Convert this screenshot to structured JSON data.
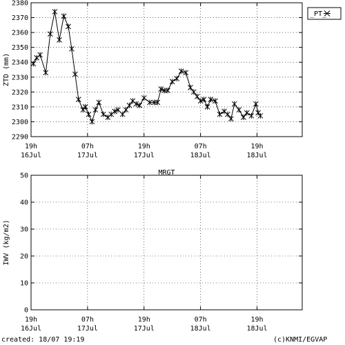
{
  "chart_data": [
    {
      "type": "line",
      "ylabel": "ZTD (mm)",
      "ylim": [
        2290,
        2380
      ],
      "yticks": [
        2290,
        2300,
        2310,
        2320,
        2330,
        2340,
        2350,
        2360,
        2370,
        2380
      ],
      "xlim": [
        0,
        48
      ],
      "xticks": [
        {
          "x": 0,
          "top": "19h",
          "bottom": "16Jul"
        },
        {
          "x": 10,
          "top": "07h",
          "bottom": "17Jul"
        },
        {
          "x": 20,
          "top": "19h",
          "bottom": "17Jul"
        },
        {
          "x": 30,
          "top": "07h",
          "bottom": "18Jul"
        },
        {
          "x": 40,
          "top": "19h",
          "bottom": "18Jul"
        }
      ],
      "legend": {
        "label": "_PT_",
        "position": "top-right outside"
      },
      "series": [
        {
          "name": "_PT_",
          "marker": "asterisk",
          "x": [
            0.4,
            1.0,
            1.6,
            2.6,
            3.4,
            4.2,
            5.0,
            5.8,
            6.6,
            7.2,
            7.8,
            8.4,
            9.2,
            9.6,
            10.2,
            10.8,
            11.4,
            12.0,
            12.8,
            13.6,
            14.2,
            14.8,
            15.4,
            16.2,
            16.8,
            17.4,
            18.0,
            18.6,
            19.2,
            20.0,
            21.0,
            21.8,
            22.4,
            23.0,
            23.6,
            24.2,
            25.0,
            25.8,
            26.6,
            27.4,
            28.2,
            28.8,
            29.4,
            30.0,
            30.6,
            31.2,
            31.8,
            32.6,
            33.4,
            34.2,
            34.8,
            35.4,
            36.0,
            36.8,
            37.6,
            38.2,
            39.0,
            39.8,
            40.2,
            40.6
          ],
          "y": [
            2339,
            2343,
            2345,
            2333,
            2359,
            2374,
            2355,
            2371,
            2364,
            2349,
            2332,
            2315,
            2308,
            2310,
            2305,
            2300,
            2308,
            2313,
            2305,
            2303,
            2305,
            2307,
            2308,
            2305,
            2308,
            2311,
            2314,
            2312,
            2311,
            2316,
            2313,
            2313,
            2313,
            2322,
            2321,
            2321,
            2327,
            2329,
            2334,
            2333,
            2323,
            2320,
            2317,
            2314,
            2315,
            2310,
            2315,
            2314,
            2305,
            2307,
            2305,
            2302,
            2312,
            2308,
            2303,
            2306,
            2304,
            2312,
            2306,
            2304
          ]
        }
      ]
    },
    {
      "type": "line",
      "title": "MRGT",
      "ylabel": "IWV (kg/m2)",
      "ylim": [
        0,
        50
      ],
      "yticks": [
        0,
        10,
        20,
        30,
        40,
        50
      ],
      "xlim": [
        0,
        48
      ],
      "xticks": [
        {
          "x": 0,
          "top": "19h",
          "bottom": "16Jul"
        },
        {
          "x": 10,
          "top": "07h",
          "bottom": "17Jul"
        },
        {
          "x": 20,
          "top": "19h",
          "bottom": "17Jul"
        },
        {
          "x": 30,
          "top": "07h",
          "bottom": "18Jul"
        },
        {
          "x": 40,
          "top": "19h",
          "bottom": "18Jul"
        }
      ],
      "series": []
    }
  ],
  "footer": {
    "created": "created: 18/07 19:19",
    "credit": "(c)KNMI/EGVAP"
  }
}
